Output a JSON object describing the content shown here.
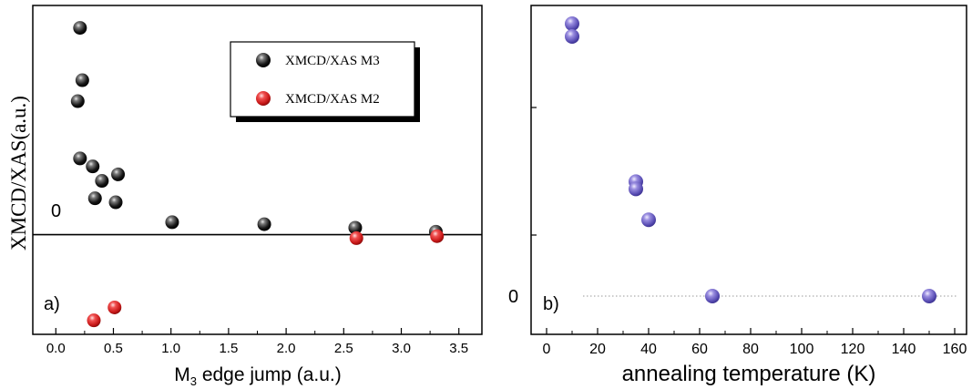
{
  "chart_data": [
    {
      "type": "scatter",
      "panel_label": "a)",
      "xlabel_main": "M",
      "xlabel_sub": "3",
      "xlabel_rest": " edge jump (a.u.)",
      "ylabel": "XMCD/XAS(a.u.)",
      "y_zero_label": "0",
      "xlim": [
        -0.2,
        3.7
      ],
      "ylim": [
        -0.2,
        0.46
      ],
      "xticks": [
        0.0,
        0.5,
        1.0,
        1.5,
        2.0,
        2.5,
        3.0,
        3.5
      ],
      "xtick_labels": [
        "0.0",
        "0.5",
        "1.0",
        "1.5",
        "2.0",
        "2.5",
        "3.0",
        "3.5"
      ],
      "legend_position": "top-right",
      "series": [
        {
          "name": "XMCD/XAS M3",
          "color": "#111111",
          "points": [
            [
              0.21,
              0.415
            ],
            [
              0.23,
              0.31
            ],
            [
              0.19,
              0.268
            ],
            [
              0.21,
              0.153
            ],
            [
              0.32,
              0.137
            ],
            [
              0.4,
              0.108
            ],
            [
              0.54,
              0.121
            ],
            [
              0.34,
              0.073
            ],
            [
              0.52,
              0.065
            ],
            [
              1.01,
              0.025
            ],
            [
              1.81,
              0.021
            ],
            [
              2.6,
              0.014
            ],
            [
              3.3,
              0.006
            ]
          ]
        },
        {
          "name": "XMCD/XAS M2",
          "color": "#d42020",
          "points": [
            [
              0.33,
              -0.172
            ],
            [
              0.51,
              -0.146
            ],
            [
              2.61,
              -0.007
            ],
            [
              3.31,
              -0.003
            ]
          ]
        }
      ]
    },
    {
      "type": "scatter",
      "panel_label": "b)",
      "xlabel": "annealing temperature (K)",
      "y_zero_label": "0",
      "xlim": [
        -5,
        163
      ],
      "ylim": [
        -0.2,
        1.6
      ],
      "xticks": [
        0,
        20,
        40,
        60,
        80,
        100,
        120,
        140,
        160
      ],
      "xtick_labels": [
        "0",
        "20",
        "40",
        "60",
        "80",
        "100",
        "120",
        "140",
        "160"
      ],
      "series": [
        {
          "color": "#6a5fc0",
          "points": [
            [
              10,
              1.5
            ],
            [
              10,
              1.43
            ],
            [
              35,
              0.63
            ],
            [
              35,
              0.59
            ],
            [
              40,
              0.42
            ],
            [
              65,
              0.0
            ],
            [
              150,
              0.0
            ]
          ]
        }
      ]
    }
  ]
}
